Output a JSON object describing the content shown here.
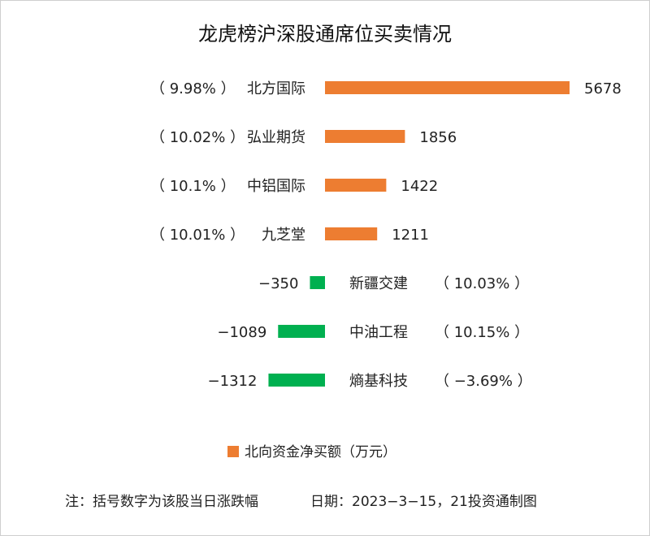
{
  "chart_data": {
    "type": "bar",
    "orientation": "horizontal",
    "title": "龙虎榜沪深股通席位买卖情况",
    "series": [
      {
        "name": "北向资金净买额（万元）",
        "color_positive": "#ED7D31",
        "color_negative": "#00B050"
      }
    ],
    "categories": [
      "北方国际",
      "弘业期货",
      "中铝国际",
      "九芝堂",
      "新疆交建",
      "中油工程",
      "熵基科技"
    ],
    "values": [
      5678,
      1856,
      1422,
      1211,
      -350,
      -1089,
      -1312
    ],
    "value_labels": [
      "5678",
      "1856",
      "1422",
      "1211",
      "−350",
      "−1089",
      "−1312"
    ],
    "changes": [
      "（ 9.98% ）",
      "（ 10.02% ）",
      "（ 10.1% ）",
      "（ 10.01% ）",
      "（ 10.03% ）",
      "（ 10.15% ）",
      "（ −3.69% ）"
    ],
    "legend": {
      "label": "北向资金净买额（万元）",
      "placement": "bottom",
      "color": "#ED7D31"
    },
    "grid": false
  },
  "footer": {
    "note": "注：括号数字为该股当日涨跌幅",
    "source": "日期：2023−3−15，21投资通制图"
  }
}
